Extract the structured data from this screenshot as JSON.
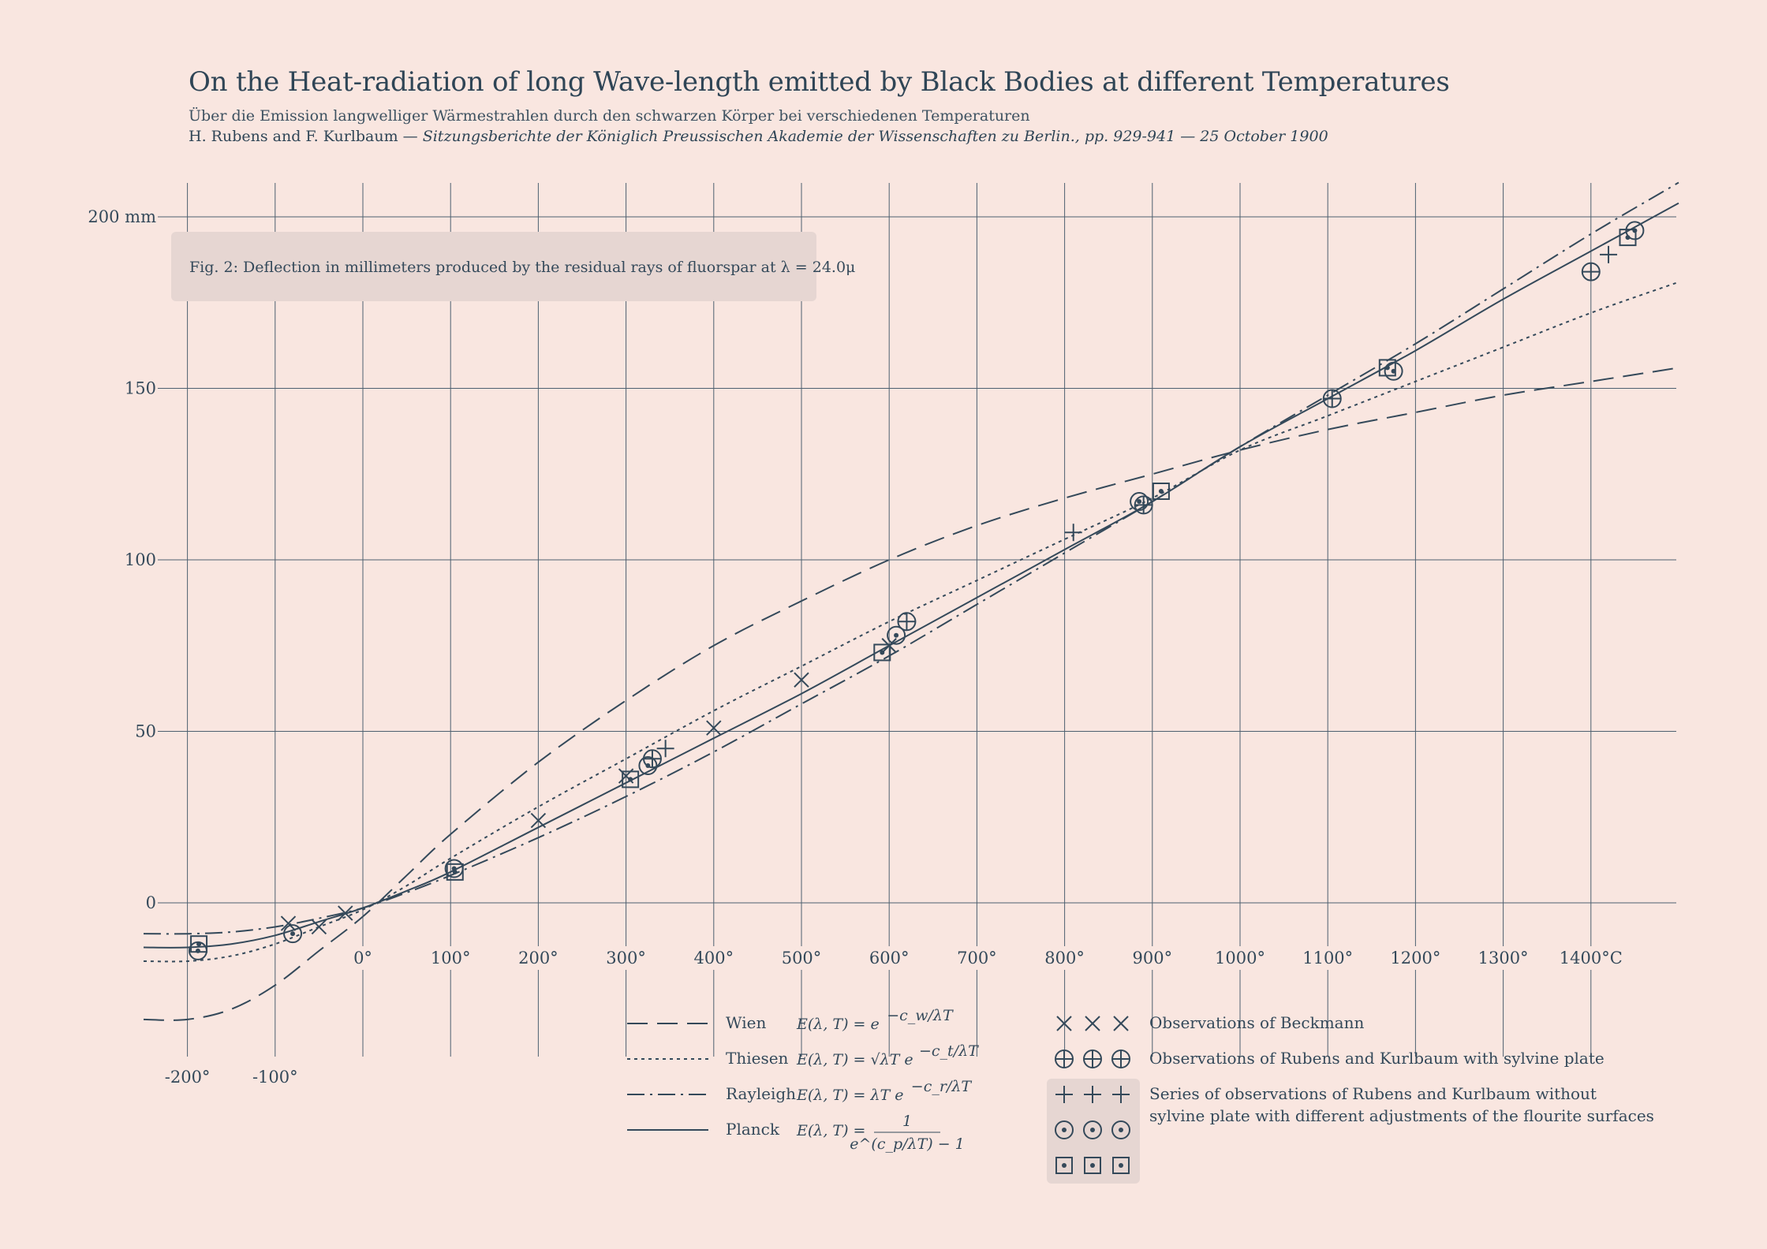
{
  "header": {
    "title": "On the Heat-radiation of long Wave-length emitted by Black Bodies at different Temperatures",
    "subtitle": "Über die Emission langwelliger Wärmestrahlen durch den schwarzen Körper bei verschiedenen Temperaturen",
    "authors": "H. Rubens and F. Kurlbaum",
    "dash": " — ",
    "journal": "Sitzungsberichte der Königlich Preussischen Akademie der Wissenschaften zu Berlin., pp. 929-941 — 25 October 1900"
  },
  "caption": "Fig. 2: Deflection in millimeters produced by the residual rays of fluorspar at λ = 24.0μ",
  "colors": {
    "background": "#f9e6e0",
    "ink": "#34495a",
    "grid": "#4d6070",
    "caption_box": "#e6d6d2"
  },
  "chart_data": {
    "type": "line",
    "xlabel": "",
    "ylabel": "",
    "xlim": [
      -270,
      1500
    ],
    "ylim": [
      -38,
      210
    ],
    "grid": true,
    "x_ticks": [
      {
        "value": -200,
        "label": "-200°"
      },
      {
        "value": -100,
        "label": "-100°"
      },
      {
        "value": 0,
        "label": "0°"
      },
      {
        "value": 100,
        "label": "100°"
      },
      {
        "value": 200,
        "label": "200°"
      },
      {
        "value": 300,
        "label": "300°"
      },
      {
        "value": 400,
        "label": "400°"
      },
      {
        "value": 500,
        "label": "500°"
      },
      {
        "value": 600,
        "label": "600°"
      },
      {
        "value": 700,
        "label": "700°"
      },
      {
        "value": 800,
        "label": "800°"
      },
      {
        "value": 900,
        "label": "900°"
      },
      {
        "value": 1000,
        "label": "1000°"
      },
      {
        "value": 1100,
        "label": "1100°"
      },
      {
        "value": 1200,
        "label": "1200°"
      },
      {
        "value": 1300,
        "label": "1300°"
      },
      {
        "value": 1400,
        "label": "1400°C"
      }
    ],
    "y_ticks": [
      {
        "value": 0,
        "label": "0"
      },
      {
        "value": 50,
        "label": "50"
      },
      {
        "value": 100,
        "label": "100"
      },
      {
        "value": 150,
        "label": "150"
      },
      {
        "value": 200,
        "label": "200 mm"
      }
    ],
    "x_grid": [
      -200,
      -100,
      0,
      100,
      200,
      300,
      400,
      500,
      600,
      700,
      800,
      900,
      1000,
      1100,
      1200,
      1300,
      1400
    ],
    "y_grid": [
      0,
      50,
      100,
      150,
      200
    ],
    "series": [
      {
        "name": "Wien",
        "formula": "E(λ,T) = e^(−c_w/λT)",
        "style": "long-dash",
        "x": [
          -250,
          -200,
          -150,
          -100,
          -50,
          0,
          50,
          100,
          200,
          300,
          400,
          500,
          600,
          700,
          800,
          900,
          1000,
          1100,
          1200,
          1300,
          1400,
          1500
        ],
        "y": [
          -34,
          -34,
          -31,
          -24,
          -14,
          -4,
          8,
          20,
          41,
          59,
          75,
          88,
          100,
          110,
          118,
          125,
          132,
          138,
          143,
          148,
          152,
          156
        ]
      },
      {
        "name": "Thiesen",
        "formula": "E(λ,T) = √(λT) e^(−c_t/λT)",
        "style": "dotted",
        "x": [
          -250,
          -200,
          -150,
          -100,
          -50,
          0,
          50,
          100,
          200,
          300,
          400,
          500,
          600,
          700,
          800,
          900,
          1000,
          1100,
          1200,
          1300,
          1400,
          1500
        ],
        "y": [
          -17,
          -17,
          -15.5,
          -12,
          -7,
          -2,
          5,
          13,
          28,
          42,
          56,
          69,
          82,
          94,
          106,
          118,
          132,
          142,
          152,
          162,
          172,
          181
        ]
      },
      {
        "name": "Rayleigh",
        "formula": "E(λ,T) = λT e^(−c_r/λT)",
        "style": "dash-dot",
        "x": [
          -250,
          -200,
          -150,
          -100,
          -50,
          0,
          50,
          100,
          200,
          300,
          400,
          500,
          600,
          700,
          800,
          900,
          1000,
          1100,
          1200,
          1300,
          1400,
          1500
        ],
        "y": [
          -9,
          -9,
          -8.5,
          -7,
          -4.5,
          -1.5,
          3,
          8,
          19,
          31,
          44,
          58,
          72,
          87,
          102,
          117,
          133,
          148,
          163,
          179,
          195,
          210
        ]
      },
      {
        "name": "Planck",
        "formula": "E(λ,T) = 1 / (e^(c_p/λT) − 1)",
        "style": "solid",
        "x": [
          -250,
          -200,
          -150,
          -100,
          -50,
          0,
          50,
          100,
          200,
          300,
          400,
          500,
          600,
          700,
          800,
          900,
          1000,
          1100,
          1200,
          1300,
          1400,
          1500
        ],
        "y": [
          -13,
          -13,
          -12,
          -9.5,
          -5.5,
          -1.5,
          3.5,
          9,
          22,
          35,
          48,
          61,
          75,
          89,
          103,
          117,
          133,
          147,
          161,
          176,
          190,
          204
        ]
      }
    ],
    "observations": [
      {
        "name": "Observations of Beckmann",
        "marker": "x",
        "points": [
          [
            -85,
            -6
          ],
          [
            -50,
            -7
          ],
          [
            -20,
            -3
          ],
          [
            200,
            24
          ],
          [
            300,
            37
          ],
          [
            400,
            51
          ],
          [
            500,
            65
          ],
          [
            600,
            75
          ]
        ]
      },
      {
        "name": "Observations of Rubens and Kurlbaum with sylvine plate",
        "marker": "circle-plus",
        "points": [
          [
            330,
            42
          ],
          [
            620,
            82
          ],
          [
            890,
            116
          ],
          [
            1105,
            147
          ],
          [
            1400,
            184
          ]
        ]
      },
      {
        "name": "Series of observations of Rubens and Kurlbaum without sylvine plate with different adjustments of the flourite surfaces",
        "marker": "plus",
        "points": [
          [
            345,
            45
          ],
          [
            810,
            108
          ],
          [
            1420,
            189
          ]
        ]
      },
      {
        "name": "Series of observations of Rubens and Kurlbaum without sylvine plate with different adjustments of the flourite surfaces",
        "marker": "circle-dot",
        "points": [
          [
            -188,
            -14
          ],
          [
            -80,
            -9
          ],
          [
            104,
            10
          ],
          [
            325,
            40
          ],
          [
            608,
            78
          ],
          [
            885,
            117
          ],
          [
            1175,
            155
          ],
          [
            1450,
            196
          ]
        ]
      },
      {
        "name": "Series of observations of Rubens and Kurlbaum without sylvine plate with different adjustments of the flourite surfaces",
        "marker": "square-dot",
        "points": [
          [
            -187,
            -12
          ],
          [
            105,
            9
          ],
          [
            305,
            36
          ],
          [
            592,
            73
          ],
          [
            910,
            120
          ],
          [
            1168,
            156
          ],
          [
            1442,
            194
          ]
        ]
      }
    ],
    "legend": {
      "placement": "bottom-center",
      "lines": [
        {
          "name": "Wien",
          "style": "long-dash",
          "formula_text": "E(λ, T) = e",
          "formula_sup": "−c_w/λT"
        },
        {
          "name": "Thiesen",
          "style": "dotted",
          "formula_text": "E(λ, T) = √λT e",
          "formula_sup": "−c_t/λT"
        },
        {
          "name": "Rayleigh",
          "style": "dash-dot",
          "formula_text": "E(λ, T) = λT e",
          "formula_sup": "−c_r/λT"
        },
        {
          "name": "Planck",
          "style": "solid",
          "formula_text": "E(λ, T) =",
          "formula_num": "1",
          "formula_den": "e^(c_p/λT) − 1"
        }
      ],
      "markers": [
        {
          "marker": "x",
          "label": "Observations of Beckmann"
        },
        {
          "marker": "circle-plus",
          "label": "Observations of Rubens and Kurlbaum with sylvine plate"
        },
        {
          "marker": "plus",
          "label": "Series of observations of Rubens and Kurlbaum without",
          "label2": "sylvine plate with different adjustments of the flourite surfaces"
        },
        {
          "marker": "circle-dot",
          "label": ""
        },
        {
          "marker": "square-dot",
          "label": ""
        }
      ]
    }
  }
}
